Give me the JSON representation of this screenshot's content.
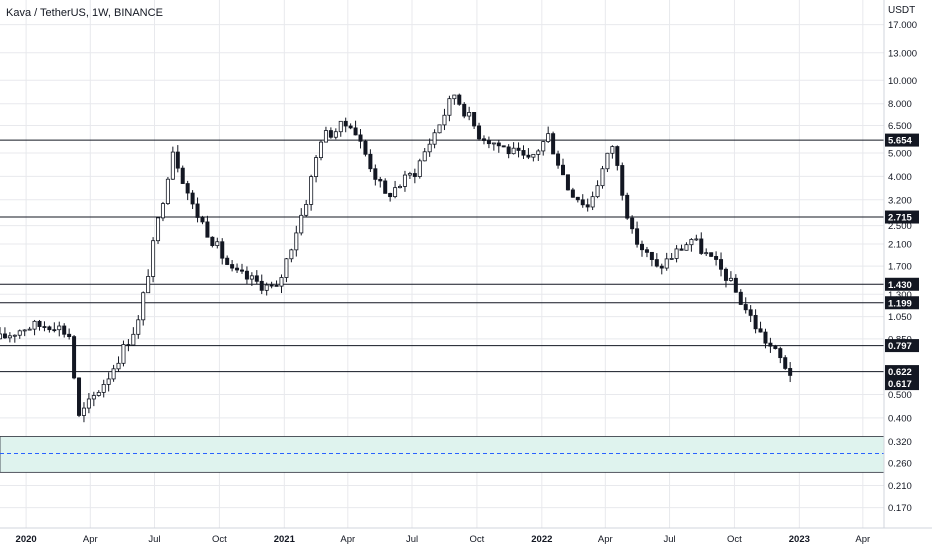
{
  "header": {
    "symbol_line": "Kava / TetherUS, 1W, BINANCE"
  },
  "price_axis": {
    "currency": "USDT",
    "ticks": [
      "17.000",
      "13.000",
      "10.000",
      "8.000",
      "6.500",
      "5.000",
      "4.000",
      "3.200",
      "2.500",
      "2.100",
      "1.700",
      "1.300",
      "1.050",
      "0.850",
      "0.500",
      "0.400",
      "0.320",
      "0.260",
      "0.210",
      "0.170"
    ]
  },
  "time_axis": {
    "labels": [
      "2020",
      "Apr",
      "Jul",
      "Oct",
      "2021",
      "Apr",
      "Jul",
      "Oct",
      "2022",
      "Apr",
      "Jul",
      "Oct",
      "2023",
      "Apr"
    ]
  },
  "levels": [
    "5.654",
    "2.715",
    "1.430",
    "1.199",
    "0.797",
    "0.622",
    "0.617"
  ],
  "demand_zone": {
    "top": 0.335,
    "bottom": 0.238,
    "mid": 0.285
  },
  "colors": {
    "up": "#ffffff",
    "down": "#131722",
    "wick": "#131722",
    "zone_fill": "#dff3ee",
    "zone_border": "#2a2e39",
    "zone_mid": "#2962ff",
    "grid": "#e8e9ed"
  },
  "chart_data": {
    "type": "candlestick",
    "title": "Kava / TetherUS, 1W, BINANCE",
    "y_scale": "log",
    "y_unit": "USDT",
    "ylim": [
      0.14,
      21.5
    ],
    "xlim": [
      "2019-11-25",
      "2023-05-01"
    ],
    "horizontal_levels": [
      5.654,
      2.715,
      1.43,
      1.199,
      0.797,
      0.622
    ],
    "zone": [
      0.238,
      0.335
    ],
    "series": [
      {
        "close_points": [
          {
            "date": "2019-11-25",
            "close": 0.85
          },
          {
            "date": "2019-12-30",
            "close": 0.95
          },
          {
            "date": "2020-02-10",
            "close": 0.98
          },
          {
            "date": "2020-03-02",
            "close": 0.88
          },
          {
            "date": "2020-03-16",
            "close": 0.4
          },
          {
            "date": "2020-04-27",
            "close": 0.6
          },
          {
            "date": "2020-06-08",
            "close": 1.0
          },
          {
            "date": "2020-07-06",
            "close": 2.6
          },
          {
            "date": "2020-07-27",
            "close": 5.2
          },
          {
            "date": "2020-08-24",
            "close": 3.0
          },
          {
            "date": "2020-10-19",
            "close": 1.6
          },
          {
            "date": "2020-12-21",
            "close": 1.35
          },
          {
            "date": "2021-02-01",
            "close": 3.2
          },
          {
            "date": "2021-02-22",
            "close": 5.8
          },
          {
            "date": "2021-04-05",
            "close": 6.7
          },
          {
            "date": "2021-05-24",
            "close": 3.3
          },
          {
            "date": "2021-07-05",
            "close": 4.2
          },
          {
            "date": "2021-08-30",
            "close": 8.8
          },
          {
            "date": "2021-10-04",
            "close": 6.0
          },
          {
            "date": "2021-12-13",
            "close": 4.6
          },
          {
            "date": "2022-01-10",
            "close": 5.9
          },
          {
            "date": "2022-02-07",
            "close": 3.6
          },
          {
            "date": "2022-03-07",
            "close": 3.0
          },
          {
            "date": "2022-04-11",
            "close": 5.4
          },
          {
            "date": "2022-05-09",
            "close": 2.3
          },
          {
            "date": "2022-06-13",
            "close": 1.65
          },
          {
            "date": "2022-08-01",
            "close": 2.2
          },
          {
            "date": "2022-09-19",
            "close": 1.55
          },
          {
            "date": "2022-11-07",
            "close": 0.89
          },
          {
            "date": "2022-12-05",
            "close": 0.7
          },
          {
            "date": "2022-12-19",
            "close": 0.617
          }
        ]
      }
    ]
  }
}
